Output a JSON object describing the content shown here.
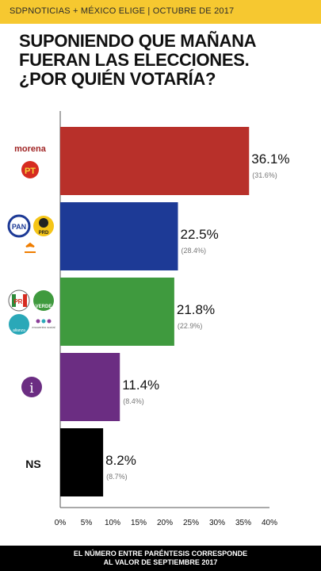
{
  "header": {
    "source": "SDPNOTICIAS + MÉXICO ELIGE | OCTUBRE DE 2017"
  },
  "title": {
    "line1": "SUPONIENDO QUE MAÑANA",
    "line2": "FUERAN LAS ELECCIONES.",
    "line3": "¿POR QUIÉN VOTARÍA?"
  },
  "footer": {
    "line1": "EL NÚMERO ENTRE PARÉNTESIS CORRESPONDE",
    "line2": "AL VALOR DE SEPTIEMBRE 2017"
  },
  "logos": {
    "morena": "morena",
    "pt": "PT",
    "pan": "PAN",
    "prd": "PRD",
    "pri": "PRI",
    "verde": "VERDE",
    "nueva_alianza": "alianza",
    "encuentro": "encuentro social",
    "independiente": "i",
    "ns": "NS"
  },
  "chart_data": {
    "type": "bar",
    "orientation": "horizontal",
    "categories": [
      "morena / PT",
      "PAN / PRD / MC",
      "PRI / VERDE / NUEVA ALIANZA / ENCUENTRO SOCIAL",
      "Independiente",
      "NS"
    ],
    "values": [
      36.1,
      22.5,
      21.8,
      11.4,
      8.2
    ],
    "value_labels": [
      "36.1%",
      "22.5%",
      "21.8%",
      "11.4%",
      "8.2%"
    ],
    "previous_values": [
      31.6,
      28.4,
      22.9,
      8.4,
      8.7
    ],
    "previous_labels": [
      "(31.6%)",
      "(28.4%)",
      "(22.9%)",
      "(8.4%)",
      "(8.7%)"
    ],
    "colors": [
      "#b8302a",
      "#1d3a96",
      "#3f9a3e",
      "#6b2d82",
      "#000000"
    ],
    "xlim": [
      0,
      40
    ],
    "xticks": [
      "0%",
      "5%",
      "10%",
      "15%",
      "20%",
      "25%",
      "30%",
      "35%",
      "40%"
    ],
    "xtick_values": [
      0,
      5,
      10,
      15,
      20,
      25,
      30,
      35,
      40
    ],
    "grid": false
  }
}
